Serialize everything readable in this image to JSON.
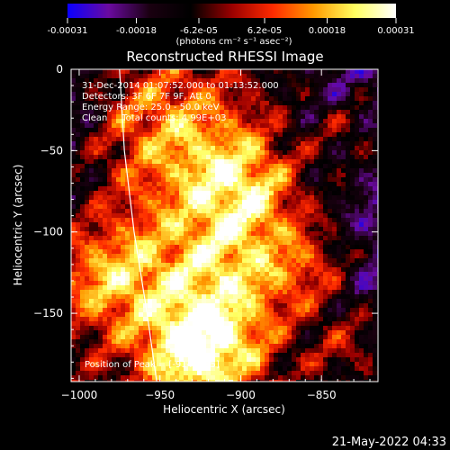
{
  "chart_data": {
    "type": "heatmap",
    "title": "Reconstructed RHESSI Image",
    "xlabel": "Heliocentric X (arcsec)",
    "ylabel": "Heliocentric Y (arcsec)",
    "xlim": [
      -1005,
      -815
    ],
    "ylim": [
      -192,
      0
    ],
    "x_ticks": [
      -1000,
      -950,
      -900,
      -850
    ],
    "x_tick_labels": [
      "−1000",
      "−950",
      "−900",
      "−850"
    ],
    "y_ticks": [
      0,
      -50,
      -100,
      -150
    ],
    "y_tick_labels": [
      "0",
      "−50",
      "−100",
      "−150"
    ],
    "colorbar": {
      "range": [
        -0.00031,
        0.00031
      ],
      "tick_values": [
        -0.00031,
        -0.00018,
        -6.2e-05,
        6.2e-05,
        0.00018,
        0.00031
      ],
      "tick_labels": [
        "-0.00031",
        "-0.00018",
        "-6.2e-05",
        "6.2e-05",
        "0.00018",
        "0.00031"
      ],
      "unit_label": "(photons cm⁻² s⁻¹ asec⁻²)",
      "colors": [
        "#0a00ff",
        "#6a0aa0",
        "#1a0010",
        "#000000",
        "#9a0000",
        "#ff2a00",
        "#ff9a00",
        "#ffff60",
        "#ffffff"
      ]
    },
    "annotations": [
      "31-Dec-2014 01:07:52.000 to 01:13:52.000",
      "Detectors: 3F 6F 7F 9F, Att 0",
      "Energy Range: 25.0 - 50.0 keV",
      "Clean     Total counts: 4.99E+03"
    ],
    "peak_label": "Position of Peak = [-914,-185]",
    "peak": [
      -914,
      -185
    ],
    "solar_limb": [
      [
        -975,
        0
      ],
      [
        -972,
        -50
      ],
      [
        -966,
        -100
      ],
      [
        -958,
        -150
      ],
      [
        -952,
        -192
      ]
    ]
  },
  "footer_timestamp": "21-May-2022 04:33"
}
